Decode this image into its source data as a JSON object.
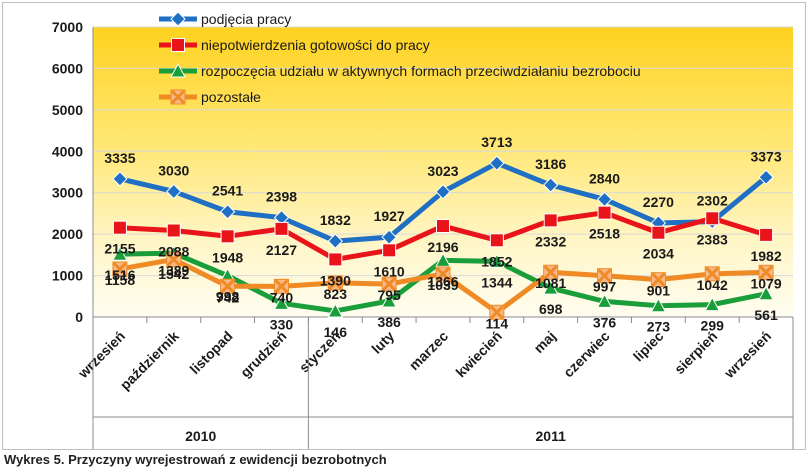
{
  "caption": "Wykres 5. Przyczyny wyrejestrowań z ewidencji bezrobotnych",
  "chart_data": {
    "type": "line",
    "categories": [
      "wrzesień",
      "październik",
      "listopad",
      "grudzień",
      "styczeń",
      "luty",
      "marzec",
      "kwiecień",
      "maj",
      "czerwiec",
      "lipiec",
      "sierpień",
      "wrzesień"
    ],
    "year_groups": [
      {
        "label": "2010",
        "from": 0,
        "to": 3
      },
      {
        "label": "2011",
        "from": 4,
        "to": 12
      }
    ],
    "ylim": [
      0,
      7000
    ],
    "yticks": [
      0,
      1000,
      2000,
      3000,
      4000,
      5000,
      6000,
      7000
    ],
    "grid": true,
    "legend_position": "top",
    "series": [
      {
        "name": "podjęcia pracy",
        "color": "#1f6fc5",
        "marker": "diamond",
        "values": [
          3335,
          3030,
          2541,
          2398,
          1832,
          1927,
          3023,
          3713,
          3186,
          2840,
          2270,
          2302,
          3373
        ]
      },
      {
        "name": "niepotwierdzenia gotowości do pracy",
        "color": "#e8141a",
        "marker": "square",
        "values": [
          2155,
          2088,
          1948,
          2127,
          1390,
          1610,
          2196,
          1852,
          2332,
          2518,
          2034,
          2383,
          1982
        ]
      },
      {
        "name": "rozpoczęcia udziału w aktywnych formach przeciwdziałaniu bezrobociu",
        "color": "#1a9e3a",
        "marker": "triangle",
        "values": [
          1516,
          1542,
          998,
          330,
          146,
          386,
          1366,
          1344,
          698,
          376,
          273,
          299,
          561
        ]
      },
      {
        "name": "pozostałe",
        "color": "#f08a24",
        "marker": "x",
        "values": [
          1158,
          1389,
          742,
          740,
          823,
          795,
          1039,
          114,
          1081,
          997,
          901,
          1042,
          1079
        ]
      }
    ]
  }
}
